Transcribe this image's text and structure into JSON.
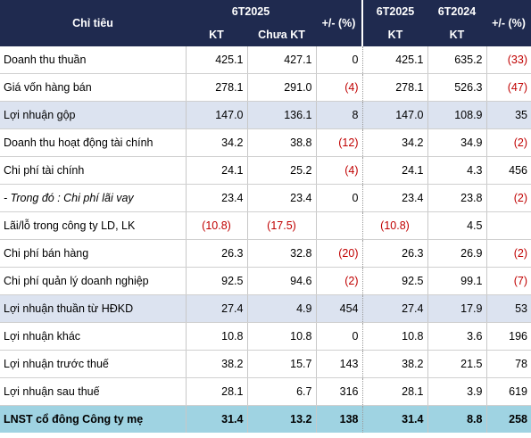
{
  "header": {
    "indicator": "Chỉ tiêu",
    "group_a": "6T2025",
    "kt_a": "KT",
    "chua_kt": "Chưa KT",
    "diff_a": "+/- (%)",
    "group_b1": "6T2025",
    "group_b2": "6T2024",
    "kt_b1": "KT",
    "kt_b2": "KT",
    "diff_b": "+/- (%)"
  },
  "rows": [
    {
      "name": "Doanh thu thuần",
      "kt": "425.1",
      "chua_kt": "427.1",
      "diff1": "0",
      "y2025": "425.1",
      "y2024": "635.2",
      "diff2": "(33)",
      "neg1": false,
      "neg2": true,
      "style": ""
    },
    {
      "name": "Giá vốn hàng bán",
      "kt": "278.1",
      "chua_kt": "291.0",
      "diff1": "(4)",
      "y2025": "278.1",
      "y2024": "526.3",
      "diff2": "(47)",
      "neg1": true,
      "neg2": true,
      "style": ""
    },
    {
      "name": "Lợi nhuận gộp",
      "kt": "147.0",
      "chua_kt": "136.1",
      "diff1": "8",
      "y2025": "147.0",
      "y2024": "108.9",
      "diff2": "35",
      "neg1": false,
      "neg2": false,
      "style": "hl"
    },
    {
      "name": "Doanh thu hoạt động tài chính",
      "kt": "34.2",
      "chua_kt": "38.8",
      "diff1": "(12)",
      "y2025": "34.2",
      "y2024": "34.9",
      "diff2": "(2)",
      "neg1": true,
      "neg2": true,
      "style": ""
    },
    {
      "name": "Chi phí tài chính",
      "kt": "24.1",
      "chua_kt": "25.2",
      "diff1": "(4)",
      "y2025": "24.1",
      "y2024": "4.3",
      "diff2": "456",
      "neg1": true,
      "neg2": false,
      "style": ""
    },
    {
      "name": "- Trong đó : Chi phí lãi vay",
      "kt": "23.4",
      "chua_kt": "23.4",
      "diff1": "0",
      "y2025": "23.4",
      "y2024": "23.8",
      "diff2": "(2)",
      "neg1": false,
      "neg2": true,
      "style": "italic"
    },
    {
      "name": "Lãi/lỗ trong công ty LD, LK",
      "kt": "(10.8)",
      "chua_kt": "(17.5)",
      "diff1": "",
      "y2025": "(10.8)",
      "y2024": "4.5",
      "diff2": "",
      "neg1": false,
      "neg2": false,
      "negkt": true,
      "negck": true,
      "neg25": true,
      "style": "ctrval"
    },
    {
      "name": "Chi phí bán hàng",
      "kt": "26.3",
      "chua_kt": "32.8",
      "diff1": "(20)",
      "y2025": "26.3",
      "y2024": "26.9",
      "diff2": "(2)",
      "neg1": true,
      "neg2": true,
      "style": ""
    },
    {
      "name": "Chi phí quản lý doanh nghiệp",
      "kt": "92.5",
      "chua_kt": "94.6",
      "diff1": "(2)",
      "y2025": "92.5",
      "y2024": "99.1",
      "diff2": "(7)",
      "neg1": true,
      "neg2": true,
      "style": ""
    },
    {
      "name": "Lợi nhuận thuần từ HĐKD",
      "kt": "27.4",
      "chua_kt": "4.9",
      "diff1": "454",
      "y2025": "27.4",
      "y2024": "17.9",
      "diff2": "53",
      "neg1": false,
      "neg2": false,
      "style": "hl"
    },
    {
      "name": "Lợi nhuận khác",
      "kt": "10.8",
      "chua_kt": "10.8",
      "diff1": "0",
      "y2025": "10.8",
      "y2024": "3.6",
      "diff2": "196",
      "neg1": false,
      "neg2": false,
      "style": ""
    },
    {
      "name": "Lợi nhuận trước thuế",
      "kt": "38.2",
      "chua_kt": "15.7",
      "diff1": "143",
      "y2025": "38.2",
      "y2024": "21.5",
      "diff2": "78",
      "neg1": false,
      "neg2": false,
      "style": ""
    },
    {
      "name": "Lợi nhuận sau thuế",
      "kt": "28.1",
      "chua_kt": "6.7",
      "diff1": "316",
      "y2025": "28.1",
      "y2024": "3.9",
      "diff2": "619",
      "neg1": false,
      "neg2": false,
      "style": ""
    },
    {
      "name": "LNST cổ đông Công ty mẹ",
      "kt": "31.4",
      "chua_kt": "13.2",
      "diff1": "138",
      "y2025": "31.4",
      "y2024": "8.8",
      "diff2": "258",
      "neg1": false,
      "neg2": false,
      "style": "last"
    }
  ],
  "colors": {
    "header_bg": "#1f2a4f",
    "highlight_bg": "#dce3f0",
    "final_bg": "#9fd3e2",
    "negative": "#c00000"
  }
}
